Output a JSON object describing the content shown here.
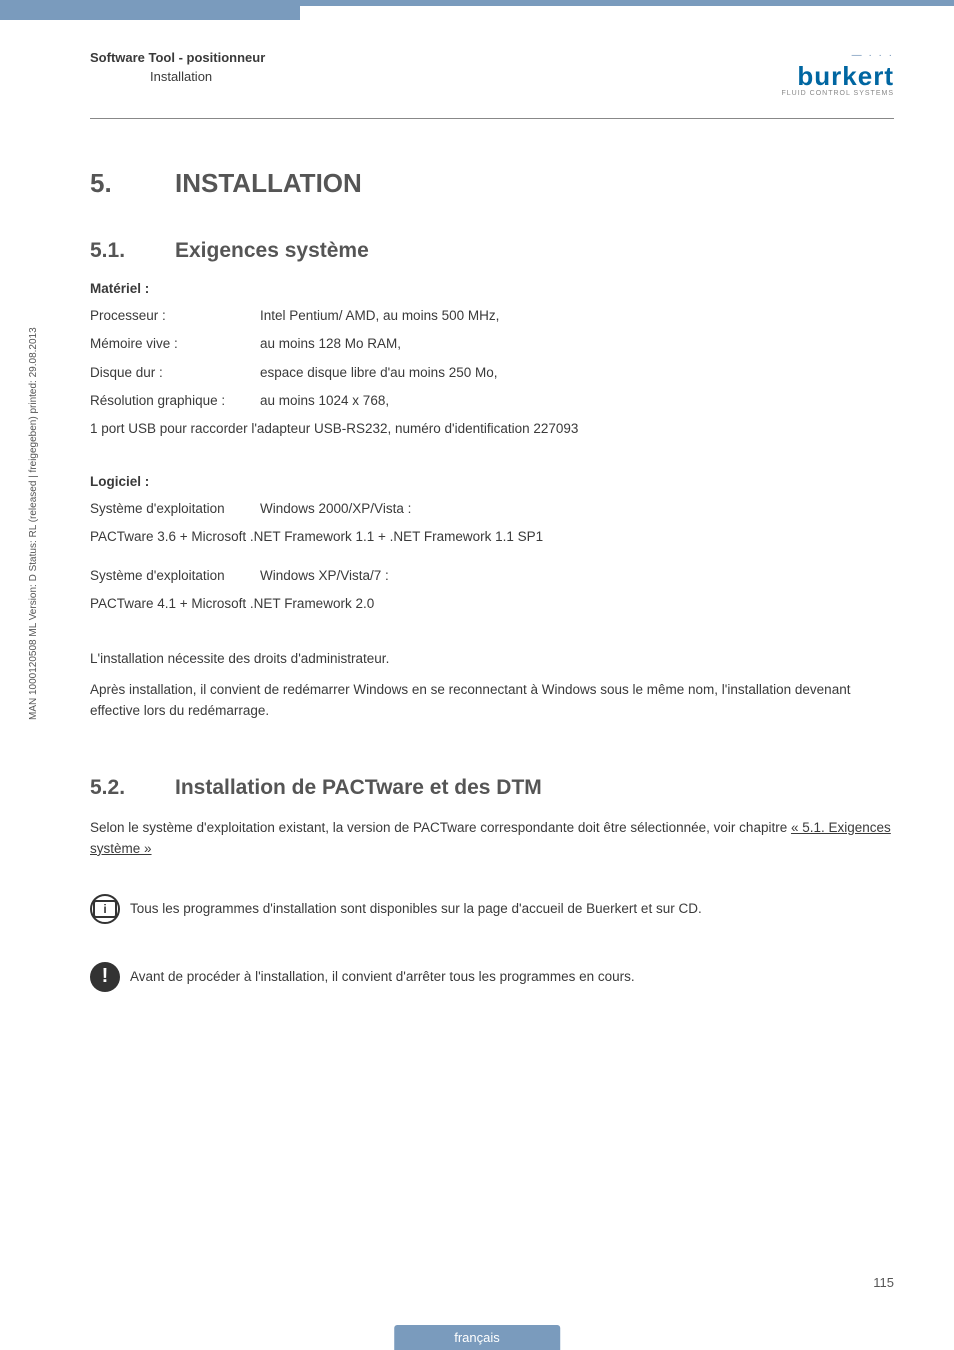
{
  "header": {
    "title": "Software Tool - positionneur",
    "subtitle": "Installation"
  },
  "logo": {
    "name": "burkert",
    "tagline": "FLUID CONTROL SYSTEMS"
  },
  "section": {
    "number": "5.",
    "title": "INSTALLATION"
  },
  "sub1": {
    "number": "5.1.",
    "title": "Exigences système",
    "hw_heading": "Matériel :",
    "rows": [
      {
        "label": "Processeur :",
        "value": "Intel Pentium/ AMD, au moins 500 MHz,"
      },
      {
        "label": "Mémoire vive :",
        "value": "au moins 128 Mo RAM,"
      },
      {
        "label": "Disque dur :",
        "value": "espace disque libre d'au moins 250 Mo,"
      },
      {
        "label": "Résolution graphique :",
        "value": "au moins 1024 x 768,"
      }
    ],
    "usb_line": "1 port USB pour raccorder l'adapteur USB-RS232, numéro d'identification 227093",
    "sw_heading": "Logiciel :",
    "os1_label": "Système d'exploitation",
    "os1_value": "Windows 2000/XP/Vista :",
    "os1_line": "PACTware 3.6 + Microsoft .NET Framework 1.1 + .NET Framework 1.1 SP1",
    "os2_label": "Système d'exploitation",
    "os2_value": "Windows XP/Vista/7 :",
    "os2_line": "PACTware 4.1 + Microsoft .NET Framework 2.0",
    "admin_line": "L'installation nécessite des droits d'administrateur.",
    "restart_line": "Après installation, il convient de redémarrer Windows en se reconnectant à Windows sous le même nom, l'installation devenant effective lors du redémarrage."
  },
  "sub2": {
    "number": "5.2.",
    "title": "Installation de PACTware et des DTM",
    "intro_a": "Selon le système d'exploitation existant, la version de PACTware correspondante doit être sélectionnée, voir chapitre ",
    "intro_link": "« 5.1. Exigences système »",
    "note_info": "Tous les programmes d'installation sont disponibles sur la page d'accueil de Buerkert et sur CD.",
    "note_warn": "Avant de procéder à l'installation, il convient d'arrêter tous les programmes en cours."
  },
  "sidetext": "MAN  1000120508  ML  Version: D  Status: RL (released | freigegeben)  printed: 29.08.2013",
  "page_number": "115",
  "footer": "français",
  "colors": {
    "band": "#7a9bbd",
    "text": "#3a3a3a",
    "heading": "#555555",
    "logo_blue": "#0066a1"
  }
}
